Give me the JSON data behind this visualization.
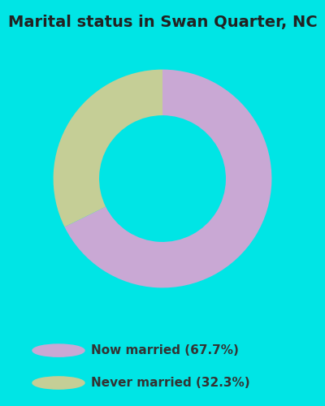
{
  "title": "Marital status in Swan Quarter, NC",
  "slices": [
    67.7,
    32.3
  ],
  "colors": [
    "#c9a8d4",
    "#c5ce96"
  ],
  "legend_labels": [
    "Now married (67.7%)",
    "Never married (32.3%)"
  ],
  "legend_marker_colors": [
    "#c9a8d4",
    "#c5ce96"
  ],
  "bg_cyan": "#00e5e5",
  "bg_chart": "#dff0dc",
  "donut_width": 0.42,
  "title_fontsize": 14,
  "start_angle": 90,
  "legend_fontsize": 11
}
